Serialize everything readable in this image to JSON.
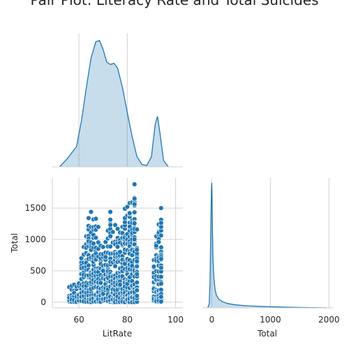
{
  "chart_data": {
    "type": "pairplot",
    "title": "Pair Plot: Literacy Rate and Total Suicides",
    "variables": [
      "LitRate",
      "Total"
    ],
    "grid": true,
    "color": "#1f77b4",
    "panels": [
      {
        "id": "litrate-kde",
        "type": "area",
        "x": [
          52,
          55,
          57,
          59,
          61,
          63,
          65,
          67,
          68.5,
          70,
          71.5,
          73,
          74.5,
          76,
          78,
          80,
          82,
          84,
          86,
          88,
          90,
          91.5,
          92.5,
          93.5,
          95,
          97
        ],
        "density": [
          0.0,
          0.06,
          0.11,
          0.16,
          0.36,
          0.62,
          0.86,
          0.99,
          1.0,
          0.93,
          0.83,
          0.81,
          0.82,
          0.78,
          0.63,
          0.43,
          0.24,
          0.08,
          0.02,
          0.01,
          0.08,
          0.33,
          0.4,
          0.27,
          0.05,
          0.0
        ],
        "xticks": [
          60,
          80
        ]
      },
      {
        "id": "litrate-vs-total",
        "type": "scatter",
        "xlabel": "LitRate",
        "ylabel": "Total",
        "xlim": [
          49,
          103
        ],
        "ylim": [
          -90,
          1980
        ],
        "xticks": [
          60,
          80,
          100
        ],
        "yticks": [
          0,
          500,
          1000,
          1500
        ],
        "columns": [
          {
            "x": 56,
            "max": 240
          },
          {
            "x": 57,
            "max": 260
          },
          {
            "x": 58,
            "max": 280
          },
          {
            "x": 59,
            "max": 250
          },
          {
            "x": 60,
            "max": 300
          },
          {
            "x": 61,
            "max": 700
          },
          {
            "x": 62,
            "max": 880
          },
          {
            "x": 63,
            "max": 1050
          },
          {
            "x": 64,
            "max": 1340
          },
          {
            "x": 65,
            "max": 1440
          },
          {
            "x": 66,
            "max": 1320
          },
          {
            "x": 67,
            "max": 1330
          },
          {
            "x": 68,
            "max": 1200
          },
          {
            "x": 69,
            "max": 900
          },
          {
            "x": 70,
            "max": 880
          },
          {
            "x": 71,
            "max": 960
          },
          {
            "x": 72,
            "max": 1140
          },
          {
            "x": 73,
            "max": 1440
          },
          {
            "x": 74,
            "max": 1120
          },
          {
            "x": 75,
            "max": 1230
          },
          {
            "x": 76,
            "max": 1170
          },
          {
            "x": 77,
            "max": 1110
          },
          {
            "x": 78,
            "max": 1200
          },
          {
            "x": 79,
            "max": 1490
          },
          {
            "x": 80,
            "max": 1520
          },
          {
            "x": 81,
            "max": 1580
          },
          {
            "x": 82,
            "max": 1590
          },
          {
            "x": 83,
            "max": 1880
          },
          {
            "x": 84,
            "max": 1160
          },
          {
            "x": 91,
            "max": 670
          },
          {
            "x": 92,
            "max": 1050
          },
          {
            "x": 93,
            "max": 1240
          },
          {
            "x": 94,
            "max": 1500
          }
        ]
      },
      {
        "id": "total-kde",
        "type": "area",
        "xlabel": "Total",
        "xlim": [
          -160,
          2080
        ],
        "xticks": [
          0,
          1000,
          2000
        ],
        "x": [
          -70,
          -45,
          -30,
          -15,
          -5,
          0,
          5,
          12,
          20,
          35,
          55,
          80,
          120,
          180,
          260,
          400,
          600,
          900,
          1300,
          1700,
          1960
        ],
        "density": [
          0.0,
          0.03,
          0.2,
          0.7,
          0.97,
          1.0,
          0.9,
          0.62,
          0.4,
          0.24,
          0.15,
          0.1,
          0.07,
          0.05,
          0.035,
          0.024,
          0.016,
          0.01,
          0.005,
          0.002,
          0.0
        ]
      }
    ]
  }
}
